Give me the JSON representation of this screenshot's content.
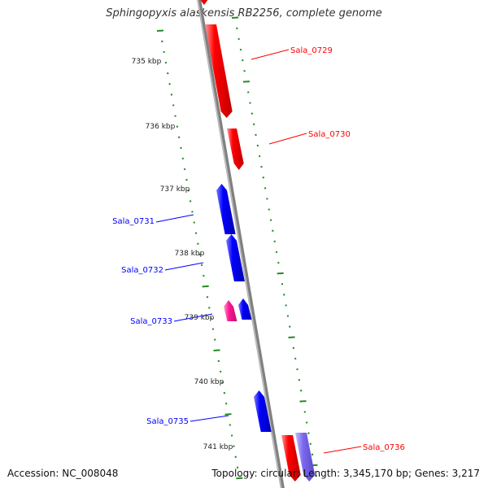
{
  "title": "Sphingopyxis alaskensis RB2256, complete genome",
  "accession": "Accession: NC_008048",
  "summary": "Topology: circular; Length: 3,345,170 bp; Genes: 3,217",
  "kbp_labels": [
    {
      "text": "735 kbp"
    },
    {
      "text": "736 kbp"
    },
    {
      "text": "737 kbp"
    },
    {
      "text": "738 kbp"
    },
    {
      "text": "739 kbp"
    },
    {
      "text": "740 kbp"
    },
    {
      "text": "741 kbp"
    }
  ],
  "genes": [
    {
      "label": "",
      "strand": "forward",
      "color": "#ff0000"
    },
    {
      "label": "Sala_0729",
      "strand": "forward",
      "color": "#ff0000"
    },
    {
      "label": "Sala_0730",
      "strand": "forward",
      "color": "#ff0000"
    },
    {
      "label": "Sala_0731",
      "strand": "reverse",
      "color": "#0000ff"
    },
    {
      "label": "Sala_0732",
      "strand": "reverse",
      "color": "#0000ff"
    },
    {
      "label": "Sala_0733",
      "strand": "reverse",
      "color": "#0000ff"
    },
    {
      "label": "",
      "strand": "reverse",
      "color": "#ff1493"
    },
    {
      "label": "Sala_0735",
      "strand": "reverse",
      "color": "#0000ff"
    },
    {
      "label": "Sala_0736",
      "strand": "forward",
      "color": "#ff0000"
    },
    {
      "label": "",
      "strand": "forward",
      "color": "#7b68ee"
    }
  ],
  "colors": {
    "forward": "#ff0000",
    "reverse": "#0000ff",
    "backbone": "#808080",
    "ticks": "#228b22",
    "label_text": "#222222"
  }
}
